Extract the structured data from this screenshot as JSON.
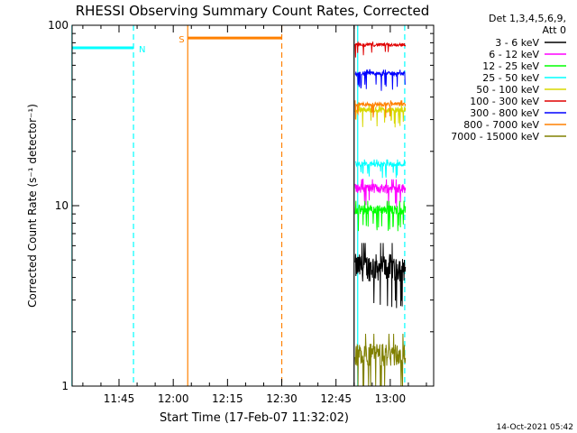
{
  "chart_data": {
    "type": "line",
    "title": "RHESSI Observing Summary Count Rates, Corrected",
    "xlabel": "Start Time (17-Feb-07 11:32:02)",
    "ylabel": "Corrected Count Rate (s⁻¹ detector⁻¹)",
    "x_start": "11:32:02",
    "x_ticks": [
      "11:45",
      "12:00",
      "12:15",
      "12:30",
      "12:45",
      "13:00"
    ],
    "y_scale": "log",
    "ylim": [
      1,
      100
    ],
    "y_ticks": [
      "1",
      "10",
      "100"
    ],
    "legend_header": [
      "Det 1,3,4,5,6,9,",
      "Att 0"
    ],
    "legend_placement": "right",
    "series": [
      {
        "name": "3 - 6 keV",
        "color": "#000000",
        "level": 4.6,
        "spread": 0.35,
        "dips": 3.0
      },
      {
        "name": "6 - 12 keV",
        "color": "#ff00ff",
        "level": 12.5,
        "spread": 0.12,
        "dips": 10.8
      },
      {
        "name": "12 - 25 keV",
        "color": "#00ff00",
        "level": 9.5,
        "spread": 0.12,
        "dips": 8.0
      },
      {
        "name": "25 - 50 keV",
        "color": "#00ffff",
        "level": 17.0,
        "spread": 0.06,
        "dips": 15.6
      },
      {
        "name": "50 - 100 keV",
        "color": "#d8d800",
        "level": 34.0,
        "spread": 0.07,
        "dips": 30.0
      },
      {
        "name": "100 - 300 keV",
        "color": "#e00000",
        "level": 78.0,
        "spread": 0.04,
        "dips": 72.0
      },
      {
        "name": "300 - 800 keV",
        "color": "#0000ff",
        "level": 54.0,
        "spread": 0.05,
        "dips": 48.0
      },
      {
        "name": "800 - 7000 keV",
        "color": "#ff8000",
        "level": 36.5,
        "spread": 0.05,
        "dips": 33.0
      },
      {
        "name": "7000 - 15000 keV",
        "color": "#808000",
        "level": 1.5,
        "spread": 0.3,
        "dips": 1.0
      }
    ],
    "data_interval": [
      "12:50",
      "13:04"
    ],
    "markers": [
      {
        "label": "N",
        "color": "#00ffff",
        "start": "11:32",
        "end": "11:49",
        "level": 75
      },
      {
        "label": "S",
        "color": "#ff8000",
        "start": "12:04",
        "end": "12:30",
        "level": 85
      }
    ],
    "vertical_lines": [
      {
        "time": "11:32",
        "color": "#00ffff",
        "style": "solid"
      },
      {
        "time": "11:49",
        "color": "#00ffff",
        "style": "dashed"
      },
      {
        "time": "12:04",
        "color": "#ff8000",
        "style": "solid"
      },
      {
        "time": "12:30",
        "color": "#ff8000",
        "style": "dashed"
      },
      {
        "time": "12:50",
        "color": "#000000",
        "style": "solid"
      },
      {
        "time": "12:51",
        "color": "#00ffff",
        "style": "solid"
      },
      {
        "time": "13:04",
        "color": "#00ffff",
        "style": "dashed"
      }
    ]
  },
  "timestamp": "14-Oct-2021 05:42"
}
